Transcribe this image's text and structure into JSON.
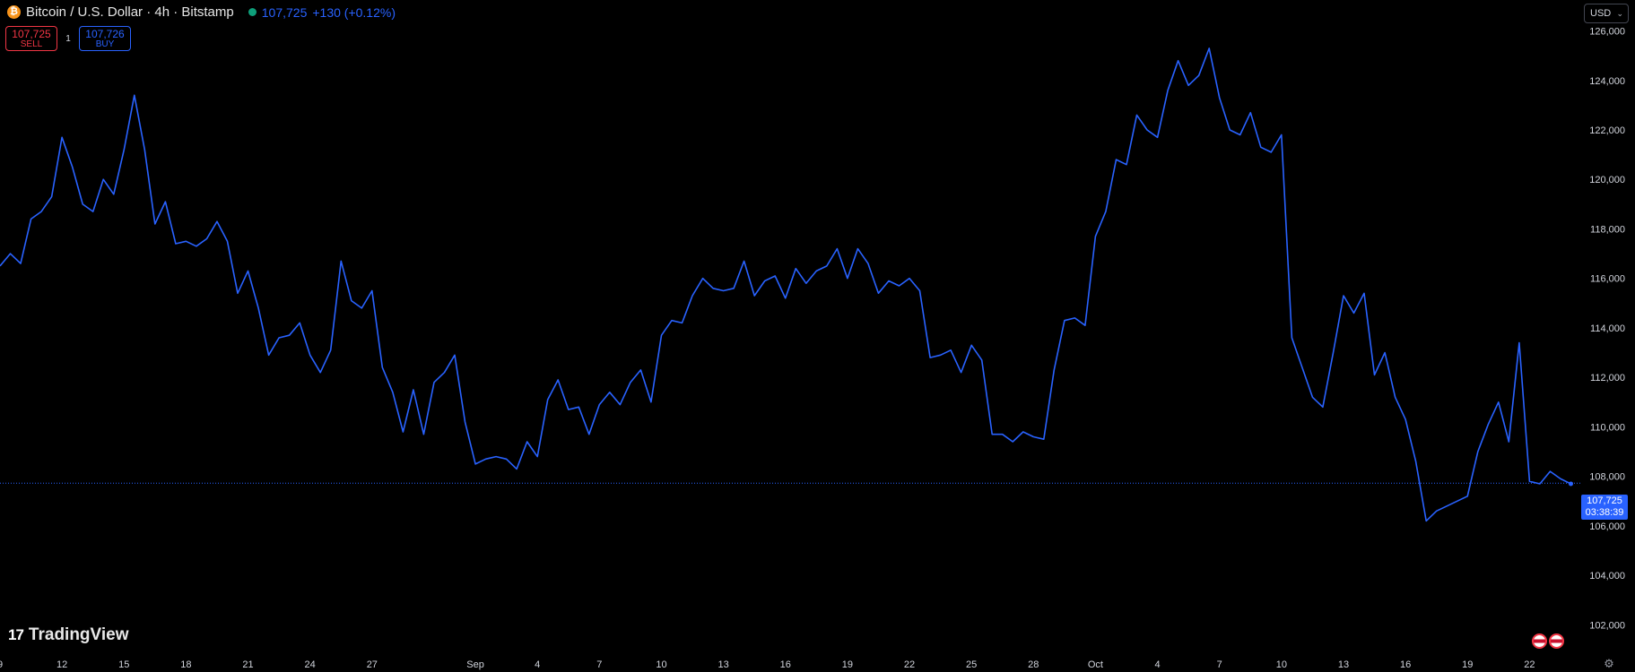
{
  "header": {
    "symbol_title": "Bitcoin / U.S. Dollar · 4h · Bitstamp",
    "last_price": "107,725",
    "change": "+130 (+0.12%)"
  },
  "trade": {
    "sell_price": "107,725",
    "sell_label": "SELL",
    "spread": "1",
    "buy_price": "107,726",
    "buy_label": "BUY"
  },
  "currency": {
    "selected": "USD"
  },
  "branding": {
    "logo_text": "TradingView",
    "logo_mark": "17"
  },
  "price_badge": {
    "price": "107,725",
    "countdown": "03:38:39"
  },
  "colors": {
    "background": "#000000",
    "line": "#2962ff",
    "axis_text": "#d1d4dc",
    "sell": "#f23645",
    "buy": "#2962ff",
    "live": "#0e9f7a"
  },
  "icons": [
    "bitcoin-icon",
    "chevron-down-icon",
    "tradingview-logo-icon",
    "flag-us-icon",
    "settings-icon"
  ],
  "chart_data": {
    "type": "line",
    "title": "",
    "xlabel": "",
    "ylabel": "",
    "ylim": [
      101000,
      127250
    ],
    "xlim": [
      "2025-08-09",
      "2025-10-24T12:00"
    ],
    "yticks": [
      102000,
      104000,
      106000,
      108000,
      110000,
      112000,
      114000,
      116000,
      118000,
      120000,
      122000,
      124000,
      126000
    ],
    "ytick_labels": [
      "102,000",
      "104,000",
      "106,000",
      "108,000",
      "110,000",
      "112,000",
      "114,000",
      "116,000",
      "118,000",
      "120,000",
      "122,000",
      "124,000",
      "126,000"
    ],
    "xticks": [
      {
        "date": "2025-08-09",
        "label": "9"
      },
      {
        "date": "2025-08-12",
        "label": "12"
      },
      {
        "date": "2025-08-15",
        "label": "15"
      },
      {
        "date": "2025-08-18",
        "label": "18"
      },
      {
        "date": "2025-08-21",
        "label": "21"
      },
      {
        "date": "2025-08-24",
        "label": "24"
      },
      {
        "date": "2025-08-27",
        "label": "27"
      },
      {
        "date": "2025-09-01",
        "label": "Sep"
      },
      {
        "date": "2025-09-04",
        "label": "4"
      },
      {
        "date": "2025-09-07",
        "label": "7"
      },
      {
        "date": "2025-09-10",
        "label": "10"
      },
      {
        "date": "2025-09-13",
        "label": "13"
      },
      {
        "date": "2025-09-16",
        "label": "16"
      },
      {
        "date": "2025-09-19",
        "label": "19"
      },
      {
        "date": "2025-09-22",
        "label": "22"
      },
      {
        "date": "2025-09-25",
        "label": "25"
      },
      {
        "date": "2025-09-28",
        "label": "28"
      },
      {
        "date": "2025-10-01",
        "label": "Oct"
      },
      {
        "date": "2025-10-04",
        "label": "4"
      },
      {
        "date": "2025-10-07",
        "label": "7"
      },
      {
        "date": "2025-10-10",
        "label": "10"
      },
      {
        "date": "2025-10-13",
        "label": "13"
      },
      {
        "date": "2025-10-16",
        "label": "16"
      },
      {
        "date": "2025-10-19",
        "label": "19"
      },
      {
        "date": "2025-10-22",
        "label": "22"
      }
    ],
    "grid": false,
    "current_price": 107725,
    "series": [
      {
        "name": "",
        "x": [
          "2025-08-09",
          "2025-08-09T12:00",
          "2025-08-10",
          "2025-08-10T12:00",
          "2025-08-11",
          "2025-08-11T12:00",
          "2025-08-12",
          "2025-08-12T12:00",
          "2025-08-13",
          "2025-08-13T12:00",
          "2025-08-14",
          "2025-08-14T12:00",
          "2025-08-15",
          "2025-08-15T12:00",
          "2025-08-16",
          "2025-08-16T12:00",
          "2025-08-17",
          "2025-08-17T12:00",
          "2025-08-18",
          "2025-08-18T12:00",
          "2025-08-19",
          "2025-08-19T12:00",
          "2025-08-20",
          "2025-08-20T12:00",
          "2025-08-21",
          "2025-08-21T12:00",
          "2025-08-22",
          "2025-08-22T12:00",
          "2025-08-23",
          "2025-08-23T12:00",
          "2025-08-24",
          "2025-08-24T12:00",
          "2025-08-25",
          "2025-08-25T12:00",
          "2025-08-26",
          "2025-08-26T12:00",
          "2025-08-27",
          "2025-08-27T12:00",
          "2025-08-28",
          "2025-08-28T12:00",
          "2025-08-29",
          "2025-08-29T12:00",
          "2025-08-30",
          "2025-08-30T12:00",
          "2025-08-31",
          "2025-08-31T12:00",
          "2025-09-01",
          "2025-09-01T12:00",
          "2025-09-02",
          "2025-09-02T12:00",
          "2025-09-03",
          "2025-09-03T12:00",
          "2025-09-04",
          "2025-09-04T12:00",
          "2025-09-05",
          "2025-09-05T12:00",
          "2025-09-06",
          "2025-09-06T12:00",
          "2025-09-07",
          "2025-09-07T12:00",
          "2025-09-08",
          "2025-09-08T12:00",
          "2025-09-09",
          "2025-09-09T12:00",
          "2025-09-10",
          "2025-09-10T12:00",
          "2025-09-11",
          "2025-09-11T12:00",
          "2025-09-12",
          "2025-09-12T12:00",
          "2025-09-13",
          "2025-09-13T12:00",
          "2025-09-14",
          "2025-09-14T12:00",
          "2025-09-15",
          "2025-09-15T12:00",
          "2025-09-16",
          "2025-09-16T12:00",
          "2025-09-17",
          "2025-09-17T12:00",
          "2025-09-18",
          "2025-09-18T12:00",
          "2025-09-19",
          "2025-09-19T12:00",
          "2025-09-20",
          "2025-09-20T12:00",
          "2025-09-21",
          "2025-09-21T12:00",
          "2025-09-22",
          "2025-09-22T12:00",
          "2025-09-23",
          "2025-09-23T12:00",
          "2025-09-24",
          "2025-09-24T12:00",
          "2025-09-25",
          "2025-09-25T12:00",
          "2025-09-26",
          "2025-09-26T12:00",
          "2025-09-27",
          "2025-09-27T12:00",
          "2025-09-28",
          "2025-09-28T12:00",
          "2025-09-29",
          "2025-09-29T12:00",
          "2025-09-30",
          "2025-09-30T12:00",
          "2025-10-01",
          "2025-10-01T12:00",
          "2025-10-02",
          "2025-10-02T12:00",
          "2025-10-03",
          "2025-10-03T12:00",
          "2025-10-04",
          "2025-10-04T12:00",
          "2025-10-05",
          "2025-10-05T12:00",
          "2025-10-06",
          "2025-10-06T12:00",
          "2025-10-07",
          "2025-10-07T12:00",
          "2025-10-08",
          "2025-10-08T12:00",
          "2025-10-09",
          "2025-10-09T12:00",
          "2025-10-10",
          "2025-10-10T12:00",
          "2025-10-11",
          "2025-10-11T12:00",
          "2025-10-12",
          "2025-10-12T12:00",
          "2025-10-13",
          "2025-10-13T12:00",
          "2025-10-14",
          "2025-10-14T12:00",
          "2025-10-15",
          "2025-10-15T12:00",
          "2025-10-16",
          "2025-10-16T12:00",
          "2025-10-17",
          "2025-10-17T12:00",
          "2025-10-18",
          "2025-10-18T12:00",
          "2025-10-19",
          "2025-10-19T12:00",
          "2025-10-20",
          "2025-10-20T12:00",
          "2025-10-21",
          "2025-10-21T12:00",
          "2025-10-22",
          "2025-10-22T12:00",
          "2025-10-23",
          "2025-10-23T12:00",
          "2025-10-24"
        ],
        "y": [
          116500,
          117000,
          116600,
          118400,
          118700,
          119300,
          121700,
          120500,
          119000,
          118700,
          120000,
          119400,
          121200,
          123400,
          121200,
          118200,
          119100,
          117400,
          117500,
          117300,
          117600,
          118300,
          117500,
          115400,
          116300,
          114800,
          112900,
          113600,
          113700,
          114200,
          112900,
          112200,
          113100,
          116700,
          115100,
          114800,
          115500,
          112400,
          111400,
          109800,
          111500,
          109700,
          111800,
          112200,
          112900,
          110200,
          108500,
          108700,
          108800,
          108700,
          108300,
          109400,
          108800,
          111100,
          111900,
          110700,
          110800,
          109700,
          110900,
          111400,
          110900,
          111800,
          112300,
          111000,
          113700,
          114300,
          114200,
          115300,
          116000,
          115600,
          115500,
          115600,
          116700,
          115300,
          115900,
          116100,
          115200,
          116400,
          115800,
          116300,
          116500,
          117200,
          116000,
          117200,
          116600,
          115400,
          115900,
          115700,
          116000,
          115500,
          112800,
          112900,
          113100,
          112200,
          113300,
          112700,
          109700,
          109700,
          109400,
          109800,
          109600,
          109500,
          112300,
          114300,
          114400,
          114100,
          117700,
          118700,
          120800,
          120600,
          122600,
          122000,
          121700,
          123600,
          124800,
          123800,
          124200,
          125300,
          123300,
          122000,
          121800,
          122700,
          121300,
          121100,
          121800,
          113600,
          112400,
          111200,
          110800,
          113000,
          115300,
          114600,
          115400,
          112100,
          113000,
          111200,
          110300,
          108600,
          106200,
          106600,
          106800,
          107000,
          107200,
          109000,
          110100,
          111000,
          109400,
          113400,
          107800,
          107700,
          108200,
          107900,
          107700
        ]
      }
    ]
  }
}
